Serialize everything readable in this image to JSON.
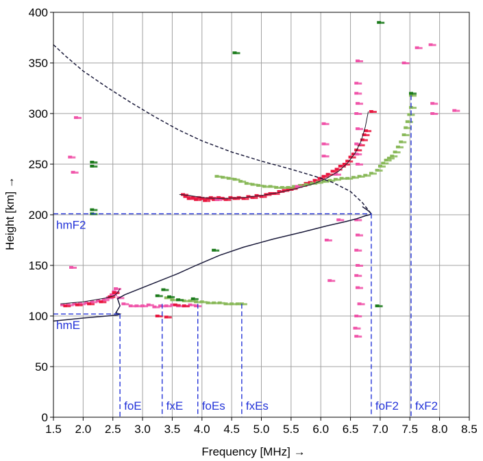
{
  "chart_data": {
    "type": "scatter",
    "xlabel": "Frequency [MHz] →",
    "ylabel": "Height  [km] →",
    "xlim": [
      1.5,
      8.5
    ],
    "ylim": [
      0,
      400
    ],
    "xticks": [
      1.5,
      2.0,
      2.5,
      3.0,
      3.5,
      4.0,
      4.5,
      5.0,
      5.5,
      6.0,
      6.5,
      7.0,
      7.5,
      8.0,
      8.5
    ],
    "xtick_labels": [
      "1.5",
      "2.0",
      "2.5",
      "3.0",
      "3.5",
      "4.0",
      "4.5",
      "5.0",
      "5.5",
      "6.0",
      "6.5",
      "7.0",
      "7.5",
      "8.0",
      "8.5"
    ],
    "yticks": [
      0,
      50,
      100,
      150,
      200,
      250,
      300,
      350,
      400
    ],
    "ytick_labels": [
      "0",
      "50",
      "100",
      "150",
      "200",
      "250",
      "300",
      "350",
      "400"
    ],
    "grid": true,
    "colors": {
      "ordinary": "#e8153e",
      "ordinary_light": "#f052a8",
      "extraordinary": "#88b858",
      "extraordinary_dark": "#1a7a1a",
      "profile": "#1a1a3a",
      "marker_line": "#2232d8",
      "grid": "#a0a0a0"
    },
    "parameters": [
      {
        "name": "foE",
        "freq": 2.62
      },
      {
        "name": "fxE",
        "freq": 3.33
      },
      {
        "name": "foEs",
        "freq": 3.93
      },
      {
        "name": "fxEs",
        "freq": 4.67
      },
      {
        "name": "foF2",
        "freq": 6.85
      },
      {
        "name": "fxF2",
        "freq": 7.52
      }
    ],
    "heights": [
      {
        "name": "hmF2",
        "height": 201,
        "freq": 6.85
      },
      {
        "name": "hmE",
        "height": 102,
        "freq": 2.62
      }
    ],
    "profile_solid": {
      "x": [
        1.5,
        2.0,
        2.4,
        2.58,
        2.62,
        2.55,
        2.62,
        2.58,
        2.7,
        3.0,
        3.3,
        3.6,
        3.9,
        4.3,
        4.7,
        5.2,
        5.7,
        6.1,
        6.4,
        6.6,
        6.75,
        6.82,
        6.85,
        6.8,
        6.7
      ],
      "y": [
        95,
        98,
        100,
        101,
        102,
        103,
        110,
        117,
        121,
        128,
        135,
        142,
        150,
        160,
        168,
        176,
        183,
        189,
        193,
        196,
        199,
        200,
        201,
        204,
        208
      ]
    },
    "profile_dashed": {
      "x": [
        1.5,
        1.7,
        2.0,
        2.4,
        2.8,
        3.2,
        3.6,
        4.0,
        4.5,
        5.0,
        5.5,
        5.9,
        6.2,
        6.5,
        6.7,
        6.85
      ],
      "y": [
        368,
        357,
        342,
        326,
        311,
        297,
        284,
        273,
        262,
        253,
        245,
        238,
        232,
        223,
        212,
        201
      ]
    },
    "trace_fit_F": {
      "x": [
        3.62,
        3.8,
        4.0,
        4.3,
        4.7,
        5.0,
        5.3,
        5.6,
        5.9,
        6.1,
        6.3,
        6.45,
        6.58,
        6.68,
        6.75,
        6.8
      ],
      "y": [
        220,
        219,
        217,
        216,
        217,
        219,
        222,
        226,
        231,
        236,
        243,
        251,
        261,
        273,
        287,
        302
      ]
    },
    "trace_fit_E": {
      "x": [
        1.62,
        1.8,
        2.0,
        2.2,
        2.4,
        2.52,
        2.58,
        2.62
      ],
      "y": [
        112,
        113,
        114,
        116,
        118,
        120,
        123,
        127
      ]
    },
    "series": [
      {
        "name": "O-F",
        "color": "#e8153e",
        "points": [
          [
            3.68,
            220
          ],
          [
            3.72,
            218
          ],
          [
            3.78,
            216
          ],
          [
            3.85,
            217
          ],
          [
            3.9,
            215
          ],
          [
            3.95,
            217
          ],
          [
            4.0,
            216
          ],
          [
            4.05,
            214
          ],
          [
            4.1,
            216
          ],
          [
            4.15,
            217
          ],
          [
            4.2,
            215
          ],
          [
            4.28,
            217
          ],
          [
            4.35,
            216
          ],
          [
            4.4,
            215
          ],
          [
            4.48,
            217
          ],
          [
            4.55,
            216
          ],
          [
            4.62,
            217
          ],
          [
            4.7,
            216
          ],
          [
            4.78,
            218
          ],
          [
            4.85,
            217
          ],
          [
            4.92,
            219
          ],
          [
            5.0,
            218
          ],
          [
            5.08,
            220
          ],
          [
            5.15,
            221
          ],
          [
            5.22,
            221
          ],
          [
            5.3,
            223
          ],
          [
            5.38,
            224
          ],
          [
            5.45,
            225
          ],
          [
            5.52,
            226
          ],
          [
            5.6,
            228
          ],
          [
            5.68,
            229
          ],
          [
            5.75,
            231
          ],
          [
            5.82,
            232
          ],
          [
            5.9,
            234
          ],
          [
            5.98,
            236
          ],
          [
            6.05,
            238
          ],
          [
            6.12,
            240
          ],
          [
            6.2,
            243
          ],
          [
            6.27,
            245
          ],
          [
            6.33,
            248
          ],
          [
            6.4,
            250
          ],
          [
            6.45,
            253
          ],
          [
            6.5,
            257
          ],
          [
            6.55,
            260
          ],
          [
            6.6,
            264
          ],
          [
            6.65,
            269
          ],
          [
            6.7,
            274
          ],
          [
            6.73,
            279
          ],
          [
            6.76,
            283
          ],
          [
            6.85,
            302
          ]
        ]
      },
      {
        "name": "O-E",
        "color": "#f052a8",
        "points": [
          [
            1.65,
            111
          ],
          [
            1.75,
            111
          ],
          [
            1.85,
            112
          ],
          [
            1.95,
            112
          ],
          [
            2.05,
            113
          ],
          [
            2.15,
            114
          ],
          [
            2.25,
            115
          ],
          [
            2.35,
            116
          ],
          [
            2.42,
            118
          ],
          [
            2.48,
            121
          ],
          [
            2.52,
            124
          ],
          [
            2.55,
            127
          ],
          [
            2.6,
            118
          ],
          [
            2.68,
            112
          ],
          [
            2.8,
            110
          ],
          [
            2.9,
            110
          ],
          [
            3.0,
            110
          ],
          [
            3.1,
            111
          ],
          [
            3.2,
            109
          ],
          [
            3.3,
            110
          ],
          [
            3.4,
            110
          ],
          [
            3.5,
            111
          ],
          [
            3.6,
            110
          ],
          [
            3.7,
            110
          ],
          [
            3.8,
            111
          ],
          [
            3.9,
            110
          ]
        ]
      },
      {
        "name": "O-E-dark",
        "color": "#e8153e",
        "points": [
          [
            1.7,
            110
          ],
          [
            1.9,
            111
          ],
          [
            2.1,
            112
          ],
          [
            2.3,
            114
          ],
          [
            2.45,
            119
          ],
          [
            2.52,
            123
          ],
          [
            3.25,
            100
          ],
          [
            3.4,
            99
          ],
          [
            3.55,
            111
          ],
          [
            3.7,
            110
          ]
        ]
      },
      {
        "name": "X-F",
        "color": "#88b858",
        "points": [
          [
            4.25,
            238
          ],
          [
            4.35,
            237
          ],
          [
            4.45,
            236
          ],
          [
            4.55,
            235
          ],
          [
            4.65,
            233
          ],
          [
            4.75,
            231
          ],
          [
            4.85,
            230
          ],
          [
            4.95,
            229
          ],
          [
            5.05,
            228
          ],
          [
            5.15,
            228
          ],
          [
            5.25,
            227
          ],
          [
            5.35,
            227
          ],
          [
            5.45,
            227
          ],
          [
            5.55,
            228
          ],
          [
            5.65,
            229
          ],
          [
            5.75,
            230
          ],
          [
            5.85,
            231
          ],
          [
            5.95,
            232
          ],
          [
            6.05,
            233
          ],
          [
            6.15,
            234
          ],
          [
            6.25,
            235
          ],
          [
            6.35,
            236
          ],
          [
            6.45,
            236
          ],
          [
            6.55,
            237
          ],
          [
            6.65,
            238
          ],
          [
            6.75,
            239
          ],
          [
            6.85,
            241
          ],
          [
            6.95,
            244
          ],
          [
            7.0,
            248
          ],
          [
            7.05,
            251
          ],
          [
            7.1,
            254
          ],
          [
            7.15,
            256
          ],
          [
            7.2,
            258
          ],
          [
            7.25,
            262
          ],
          [
            7.3,
            267
          ],
          [
            7.35,
            272
          ],
          [
            7.4,
            279
          ],
          [
            7.43,
            286
          ],
          [
            7.46,
            292
          ],
          [
            7.49,
            299
          ],
          [
            7.52,
            306
          ],
          [
            7.52,
            318
          ]
        ]
      },
      {
        "name": "X-E",
        "color": "#88b858",
        "points": [
          [
            3.4,
            118
          ],
          [
            3.5,
            116
          ],
          [
            3.6,
            116
          ],
          [
            3.7,
            115
          ],
          [
            3.8,
            115
          ],
          [
            3.9,
            114
          ],
          [
            4.0,
            114
          ],
          [
            4.1,
            113
          ],
          [
            4.2,
            113
          ],
          [
            4.3,
            113
          ],
          [
            4.4,
            112
          ],
          [
            4.5,
            112
          ],
          [
            4.6,
            112
          ],
          [
            4.67,
            112
          ]
        ]
      },
      {
        "name": "X-dark",
        "color": "#1a7a1a",
        "points": [
          [
            2.15,
            252
          ],
          [
            2.15,
            248
          ],
          [
            2.15,
            205
          ],
          [
            2.15,
            201
          ],
          [
            3.25,
            120
          ],
          [
            3.35,
            126
          ],
          [
            3.45,
            119
          ],
          [
            3.6,
            116
          ],
          [
            3.85,
            117
          ],
          [
            4.55,
            360
          ],
          [
            6.98,
            390
          ],
          [
            6.95,
            110
          ],
          [
            7.52,
            320
          ],
          [
            4.2,
            165
          ]
        ]
      },
      {
        "name": "noise",
        "color": "#f052a8",
        "points": [
          [
            1.78,
            257
          ],
          [
            1.83,
            242
          ],
          [
            1.88,
            296
          ],
          [
            1.8,
            148
          ],
          [
            6.05,
            290
          ],
          [
            6.05,
            270
          ],
          [
            6.05,
            258
          ],
          [
            6.62,
            352
          ],
          [
            6.6,
            330
          ],
          [
            6.6,
            320
          ],
          [
            6.62,
            310
          ],
          [
            6.6,
            300
          ],
          [
            6.62,
            285
          ],
          [
            6.6,
            270
          ],
          [
            6.6,
            260
          ],
          [
            6.62,
            250
          ],
          [
            6.6,
            195
          ],
          [
            6.62,
            180
          ],
          [
            6.6,
            165
          ],
          [
            6.62,
            150
          ],
          [
            6.6,
            140
          ],
          [
            6.62,
            128
          ],
          [
            6.65,
            112
          ],
          [
            6.6,
            100
          ],
          [
            6.58,
            88
          ],
          [
            6.6,
            80
          ],
          [
            7.62,
            365
          ],
          [
            7.85,
            368
          ],
          [
            7.88,
            310
          ],
          [
            7.88,
            300
          ],
          [
            8.25,
            303
          ],
          [
            6.15,
            135
          ],
          [
            5.6,
            228
          ],
          [
            7.4,
            350
          ],
          [
            6.25,
            240
          ],
          [
            6.3,
            195
          ],
          [
            4.25,
            215
          ],
          [
            6.1,
            175
          ]
        ]
      }
    ]
  }
}
